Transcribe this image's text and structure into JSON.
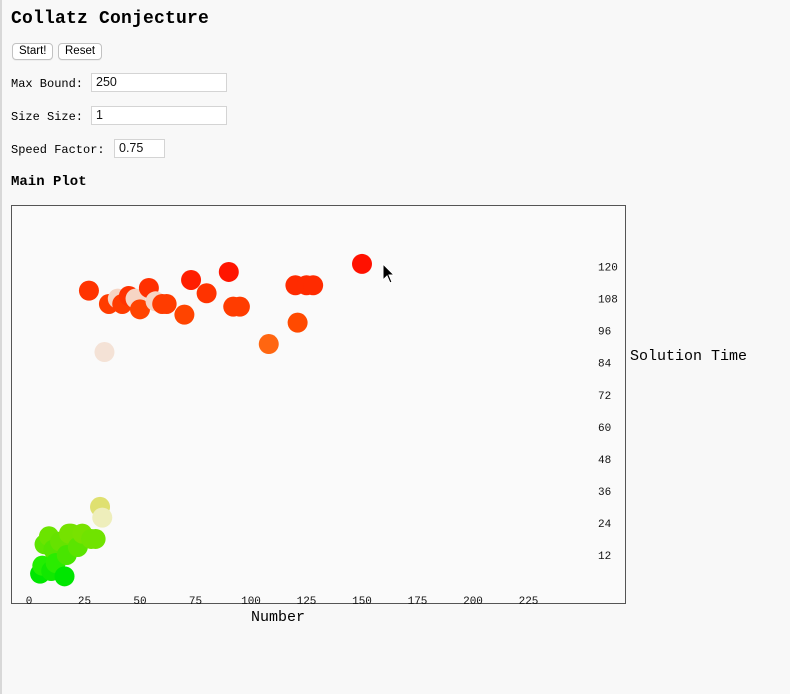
{
  "app": {
    "title": "Collatz Conjecture",
    "start_label": "Start!",
    "reset_label": "Reset"
  },
  "controls": {
    "max_bound_label": "Max Bound:",
    "max_bound_value": "250",
    "size_label": "Size Size:",
    "size_value": "1",
    "speed_label": "Speed Factor:",
    "speed_value": "0.75"
  },
  "plot": {
    "heading": "Main Plot"
  },
  "chart_data": {
    "type": "scatter",
    "title": "",
    "xlabel": "Number",
    "ylabel": "Solution Time",
    "xlim": [
      0,
      250
    ],
    "ylim": [
      0,
      130
    ],
    "x_ticks": [
      0,
      25,
      50,
      75,
      100,
      125,
      150,
      175,
      200,
      225
    ],
    "y_ticks": [
      12,
      24,
      36,
      48,
      60,
      72,
      84,
      96,
      108,
      120
    ],
    "grid": false,
    "legend": "none",
    "points": [
      {
        "x": 5,
        "y": 5,
        "color": "#00e600"
      },
      {
        "x": 6,
        "y": 8,
        "color": "#22ee00"
      },
      {
        "x": 7,
        "y": 16,
        "color": "#5de500"
      },
      {
        "x": 9,
        "y": 19,
        "color": "#6be400"
      },
      {
        "x": 10,
        "y": 6,
        "color": "#11e800"
      },
      {
        "x": 11,
        "y": 14,
        "color": "#55e400"
      },
      {
        "x": 12,
        "y": 9,
        "color": "#2aec00"
      },
      {
        "x": 14,
        "y": 17,
        "color": "#66e200"
      },
      {
        "x": 15,
        "y": 17,
        "color": "#66e200"
      },
      {
        "x": 16,
        "y": 4,
        "color": "#00e600"
      },
      {
        "x": 17,
        "y": 12,
        "color": "#48e500"
      },
      {
        "x": 18,
        "y": 20,
        "color": "#75e200"
      },
      {
        "x": 19,
        "y": 20,
        "color": "#75e200"
      },
      {
        "x": 22,
        "y": 15,
        "color": "#5be400"
      },
      {
        "x": 24,
        "y": 20,
        "color": "#78e200"
      },
      {
        "x": 27,
        "y": 111,
        "color": "#ff3300"
      },
      {
        "x": 28,
        "y": 18,
        "color": "#70e300"
      },
      {
        "x": 30,
        "y": 18,
        "color": "#70e300"
      },
      {
        "x": 32,
        "y": 30,
        "color": "#dfe070"
      },
      {
        "x": 33,
        "y": 26,
        "color": "#eeeebb"
      },
      {
        "x": 34,
        "y": 88,
        "color": "#f4e2d6"
      },
      {
        "x": 36,
        "y": 106,
        "color": "#ff3c00"
      },
      {
        "x": 40,
        "y": 108,
        "color": "#f6d5c4"
      },
      {
        "x": 42,
        "y": 106,
        "color": "#ff3c00"
      },
      {
        "x": 45,
        "y": 109,
        "color": "#ff3300"
      },
      {
        "x": 48,
        "y": 108,
        "color": "#f6d5c4"
      },
      {
        "x": 50,
        "y": 104,
        "color": "#ff4400"
      },
      {
        "x": 54,
        "y": 112,
        "color": "#ff3000"
      },
      {
        "x": 57,
        "y": 107,
        "color": "#f6d5c4"
      },
      {
        "x": 60,
        "y": 106,
        "color": "#ff3c00"
      },
      {
        "x": 62,
        "y": 106,
        "color": "#ff3c00"
      },
      {
        "x": 70,
        "y": 102,
        "color": "#ff4400"
      },
      {
        "x": 73,
        "y": 115,
        "color": "#ff1e00"
      },
      {
        "x": 80,
        "y": 110,
        "color": "#ff3300"
      },
      {
        "x": 90,
        "y": 118,
        "color": "#ff1500"
      },
      {
        "x": 92,
        "y": 105,
        "color": "#ff3c00"
      },
      {
        "x": 95,
        "y": 105,
        "color": "#ff3c00"
      },
      {
        "x": 108,
        "y": 91,
        "color": "#ff6611"
      },
      {
        "x": 120,
        "y": 113,
        "color": "#ff2b00"
      },
      {
        "x": 121,
        "y": 99,
        "color": "#ff4a00"
      },
      {
        "x": 125,
        "y": 113,
        "color": "#ff2b00"
      },
      {
        "x": 128,
        "y": 113,
        "color": "#ff2b00"
      },
      {
        "x": 150,
        "y": 121,
        "color": "#ff1100"
      }
    ]
  }
}
